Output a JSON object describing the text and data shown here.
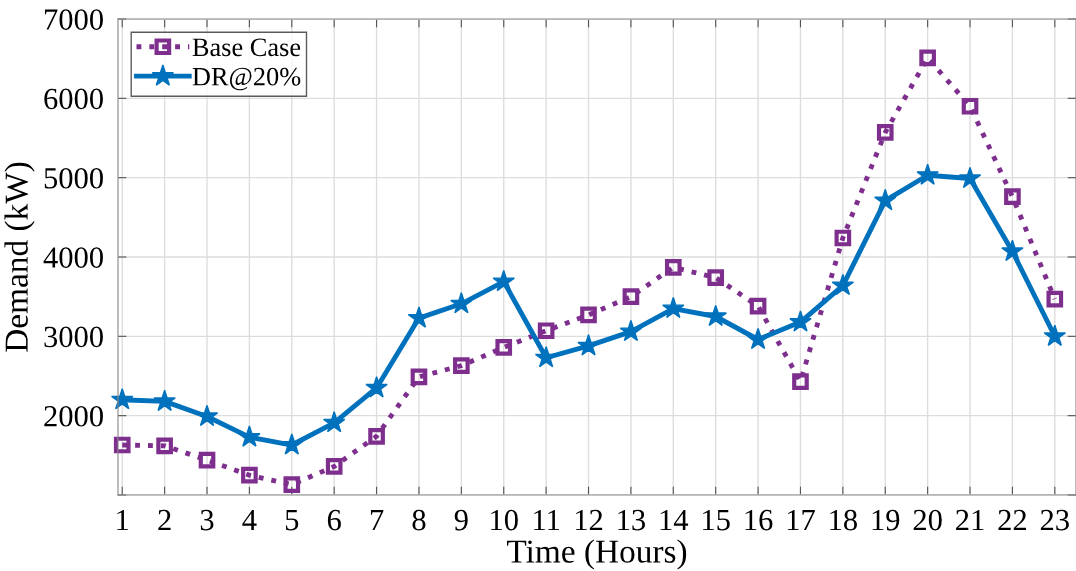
{
  "chart_data": {
    "type": "line",
    "xlabel": "Time (Hours)",
    "ylabel": "Demand (kW)",
    "x": [
      1,
      2,
      3,
      4,
      5,
      6,
      7,
      8,
      9,
      10,
      11,
      12,
      13,
      14,
      15,
      16,
      17,
      18,
      19,
      20,
      21,
      22,
      23
    ],
    "series": [
      {
        "name": "Base Case",
        "color": "#7e2f8e",
        "marker": "square",
        "line_style": "dotted",
        "values": [
          1630,
          1620,
          1440,
          1250,
          1130,
          1360,
          1740,
          2490,
          2630,
          2860,
          3070,
          3270,
          3500,
          3870,
          3740,
          3380,
          2430,
          4240,
          5570,
          6510,
          5900,
          4760,
          3470
        ]
      },
      {
        "name": "DR@20%",
        "color": "#0072bd",
        "marker": "star",
        "line_style": "solid",
        "values": [
          2200,
          2180,
          1990,
          1730,
          1630,
          1910,
          2350,
          3230,
          3410,
          3690,
          2730,
          2880,
          3060,
          3350,
          3250,
          2960,
          3180,
          3640,
          4710,
          5030,
          4990,
          4070,
          3000
        ]
      }
    ],
    "xlim": [
      0.9,
      23.5
    ],
    "xticks": [
      1,
      2,
      3,
      4,
      5,
      6,
      7,
      8,
      9,
      10,
      11,
      12,
      13,
      14,
      15,
      16,
      17,
      18,
      19,
      20,
      21,
      22,
      23
    ],
    "ylim": [
      1000,
      7000
    ],
    "yticks": [
      {
        "value": 1000,
        "label": null
      },
      2000,
      3000,
      4000,
      5000,
      6000,
      7000
    ],
    "grid": true,
    "legend": "top left"
  }
}
